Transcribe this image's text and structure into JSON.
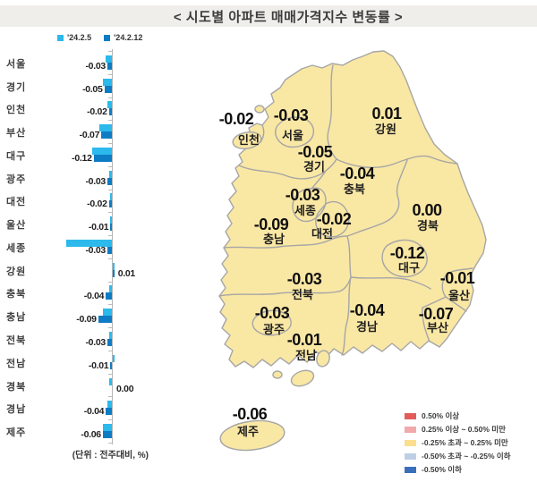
{
  "title": "< 시도별 아파트 매매가격지수 변동률 >",
  "bar_chart": {
    "legend": [
      {
        "label": "'24.2.5",
        "color": "#2cb9ec"
      },
      {
        "label": "'24.2.12",
        "color": "#0e7cc4"
      }
    ],
    "unit_note": "(단위 : 전주대비, %)",
    "regions": [
      {
        "name": "서울",
        "prev": -0.04,
        "curr": -0.03,
        "label": "-0.03"
      },
      {
        "name": "경기",
        "prev": -0.06,
        "curr": -0.05,
        "label": "-0.05"
      },
      {
        "name": "인천",
        "prev": -0.03,
        "curr": -0.02,
        "label": "-0.02"
      },
      {
        "name": "부산",
        "prev": -0.08,
        "curr": -0.07,
        "label": "-0.07"
      },
      {
        "name": "대구",
        "prev": -0.13,
        "curr": -0.12,
        "label": "-0.12"
      },
      {
        "name": "광주",
        "prev": -0.02,
        "curr": -0.03,
        "label": "-0.03"
      },
      {
        "name": "대전",
        "prev": -0.01,
        "curr": -0.02,
        "label": "-0.02"
      },
      {
        "name": "울산",
        "prev": -0.01,
        "curr": -0.01,
        "label": "-0.01"
      },
      {
        "name": "세종",
        "prev": -0.3,
        "curr": -0.03,
        "label": "-0.03"
      },
      {
        "name": "강원",
        "prev": 0.01,
        "curr": 0.01,
        "label": "0.01"
      },
      {
        "name": "충북",
        "prev": -0.02,
        "curr": -0.04,
        "label": "-0.04"
      },
      {
        "name": "충남",
        "prev": -0.06,
        "curr": -0.09,
        "label": "-0.09"
      },
      {
        "name": "전북",
        "prev": -0.02,
        "curr": -0.03,
        "label": "-0.03"
      },
      {
        "name": "전남",
        "prev": 0.01,
        "curr": -0.01,
        "label": "-0.01"
      },
      {
        "name": "경북",
        "prev": -0.02,
        "curr": 0.0,
        "label": "0.00"
      },
      {
        "name": "경남",
        "prev": -0.03,
        "curr": -0.04,
        "label": "-0.04"
      },
      {
        "name": "제주",
        "prev": -0.06,
        "curr": -0.06,
        "label": "-0.06"
      }
    ]
  },
  "map": {
    "fill": "#f9e7a4",
    "stroke": "#a6a6a6",
    "labels": [
      {
        "name": "인천",
        "value": "-0.02",
        "vx": 264,
        "vy": 139,
        "nx": 278,
        "ny": 161
      },
      {
        "name": "서울",
        "value": "-0.03",
        "vx": 325,
        "vy": 135,
        "nx": 327,
        "ny": 156
      },
      {
        "name": "경기",
        "value": "-0.05",
        "vx": 352,
        "vy": 176,
        "nx": 351,
        "ny": 191
      },
      {
        "name": "강원",
        "value": "0.01",
        "vx": 432,
        "vy": 133,
        "nx": 431,
        "ny": 149
      },
      {
        "name": "충북",
        "value": "-0.04",
        "vx": 399,
        "vy": 200,
        "nx": 396,
        "ny": 216
      },
      {
        "name": "세종",
        "value": "-0.03",
        "vx": 338,
        "vy": 224,
        "nx": 341,
        "ny": 240
      },
      {
        "name": "대전",
        "value": "-0.02",
        "vx": 373,
        "vy": 251,
        "nx": 360,
        "ny": 266
      },
      {
        "name": "충남",
        "value": "-0.09",
        "vx": 303,
        "vy": 257,
        "nx": 306,
        "ny": 272
      },
      {
        "name": "경북",
        "value": "0.00",
        "vx": 477,
        "vy": 241,
        "nx": 478,
        "ny": 257
      },
      {
        "name": "대구",
        "value": "-0.12",
        "vx": 455,
        "vy": 289,
        "nx": 457,
        "ny": 304
      },
      {
        "name": "전북",
        "value": "-0.03",
        "vx": 340,
        "vy": 318,
        "nx": 338,
        "ny": 334
      },
      {
        "name": "울산",
        "value": "-0.01",
        "vx": 511,
        "vy": 317,
        "nx": 513,
        "ny": 335
      },
      {
        "name": "광주",
        "value": "-0.03",
        "vx": 304,
        "vy": 356,
        "nx": 306,
        "ny": 373
      },
      {
        "name": "경남",
        "value": "-0.04",
        "vx": 410,
        "vy": 353,
        "nx": 410,
        "ny": 370
      },
      {
        "name": "부산",
        "value": "-0.07",
        "vx": 487,
        "vy": 357,
        "nx": 489,
        "ny": 371
      },
      {
        "name": "전남",
        "value": "-0.01",
        "vx": 340,
        "vy": 386,
        "nx": 342,
        "ny": 402
      },
      {
        "name": "제주",
        "value": "-0.06",
        "vx": 279,
        "vy": 469,
        "nx": 277,
        "ny": 487
      }
    ],
    "legend": [
      {
        "color": "#e25c5c",
        "label": "0.50% 이상"
      },
      {
        "color": "#f2a9ac",
        "label": "0.25% 이상 ~ 0.50% 미만"
      },
      {
        "color": "#fbdf8e",
        "label": "-0.25% 초과 ~ 0.25% 미만"
      },
      {
        "color": "#becfe5",
        "label": "-0.50% 초과 ~ -0.25% 이하"
      },
      {
        "color": "#3a70b9",
        "label": "-0.50% 이하"
      }
    ]
  },
  "chart_data": [
    {
      "type": "bar",
      "orientation": "horizontal",
      "title": "< 시도별 아파트 매매가격지수 변동률 >",
      "unit": "전주대비, %",
      "categories": [
        "서울",
        "경기",
        "인천",
        "부산",
        "대구",
        "광주",
        "대전",
        "울산",
        "세종",
        "강원",
        "충북",
        "충남",
        "전북",
        "전남",
        "경북",
        "경남",
        "제주"
      ],
      "series": [
        {
          "name": "'24.2.5",
          "values": [
            -0.04,
            -0.06,
            -0.03,
            -0.08,
            -0.13,
            -0.02,
            -0.01,
            -0.01,
            -0.3,
            0.01,
            -0.02,
            -0.06,
            -0.02,
            0.01,
            -0.02,
            -0.03,
            -0.06
          ]
        },
        {
          "name": "'24.2.12",
          "values": [
            -0.03,
            -0.05,
            -0.02,
            -0.07,
            -0.12,
            -0.03,
            -0.02,
            -0.01,
            -0.03,
            0.01,
            -0.04,
            -0.09,
            -0.03,
            -0.01,
            0.0,
            -0.04,
            -0.06
          ]
        }
      ],
      "xlim": [
        -0.35,
        0.05
      ],
      "grid": false,
      "legend_position": "top"
    },
    {
      "type": "heatmap",
      "subtype": "choropleth-map",
      "region_set": "South Korea provinces ('24.2.12, 전주대비 %)",
      "values": {
        "서울": -0.03,
        "경기": -0.05,
        "인천": -0.02,
        "부산": -0.07,
        "대구": -0.12,
        "광주": -0.03,
        "대전": -0.02,
        "울산": -0.01,
        "세종": -0.03,
        "강원": 0.01,
        "충북": -0.04,
        "충남": -0.09,
        "전북": -0.03,
        "전남": -0.01,
        "경북": 0.0,
        "경남": -0.04,
        "제주": -0.06
      },
      "legend_bins": [
        "0.50% 이상",
        "0.25% 이상 ~ 0.50% 미만",
        "-0.25% 초과 ~ 0.25% 미만",
        "-0.50% 초과 ~ -0.25% 이하",
        "-0.50% 이하"
      ],
      "legend_position": "bottom-right"
    }
  ]
}
